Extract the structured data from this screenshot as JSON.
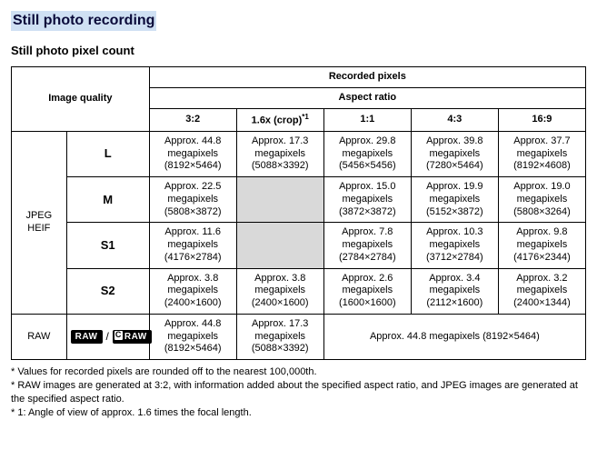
{
  "title": "Still photo recording",
  "subtitle": "Still photo pixel count",
  "headers": {
    "imageQuality": "Image quality",
    "recordedPixels": "Recorded pixels",
    "aspectRatio": "Aspect ratio",
    "ratios": {
      "r32": "3:2",
      "r16x": "1.6x (crop)",
      "r16x_sup": "*1",
      "r11": "1:1",
      "r43": "4:3",
      "r169": "16:9"
    }
  },
  "groups": {
    "jpegHeif": "JPEG\nHEIF",
    "raw": "RAW"
  },
  "sizes": {
    "L": "L",
    "M": "M",
    "S1": "S1",
    "S2": "S2"
  },
  "cells": {
    "L": {
      "r32": "Approx. 44.8 megapixels (8192×5464)",
      "r16x": "Approx. 17.3 megapixels (5088×3392)",
      "r11": "Approx. 29.8 megapixels (5456×5456)",
      "r43": "Approx. 39.8 megapixels (7280×5464)",
      "r169": "Approx. 37.7 megapixels (8192×4608)"
    },
    "M": {
      "r32": "Approx. 22.5 megapixels (5808×3872)",
      "r11": "Approx. 15.0 megapixels (3872×3872)",
      "r43": "Approx. 19.9 megapixels (5152×3872)",
      "r169": "Approx. 19.0 megapixels (5808×3264)"
    },
    "S1": {
      "r32": "Approx. 11.6 megapixels (4176×2784)",
      "r11": "Approx. 7.8 megapixels (2784×2784)",
      "r43": "Approx. 10.3 megapixels (3712×2784)",
      "r169": "Approx. 9.8 megapixels (4176×2344)"
    },
    "S2": {
      "r32": "Approx. 3.8 megapixels (2400×1600)",
      "r16x": "Approx. 3.8 megapixels (2400×1600)",
      "r11": "Approx. 2.6 megapixels (1600×1600)",
      "r43": "Approx. 3.4 megapixels (2112×1600)",
      "r169": "Approx. 3.2 megapixels (2400×1344)"
    },
    "RAW": {
      "r32": "Approx. 44.8 megapixels (8192×5464)",
      "r16x": "Approx. 17.3 megapixels (5088×3392)",
      "merged": "Approx. 44.8 megapixels (8192×5464)"
    }
  },
  "badges": {
    "raw": "RAW",
    "craw": "RAW",
    "sep": "/"
  },
  "footnotes": {
    "f1": "* Values for recorded pixels are rounded off to the nearest 100,000th.",
    "f2": "* RAW images are generated at 3:2, with information added about the specified aspect ratio, and JPEG images are generated at the specified aspect ratio.",
    "f3": "* 1: Angle of view of approx. 1.6 times the focal length."
  }
}
